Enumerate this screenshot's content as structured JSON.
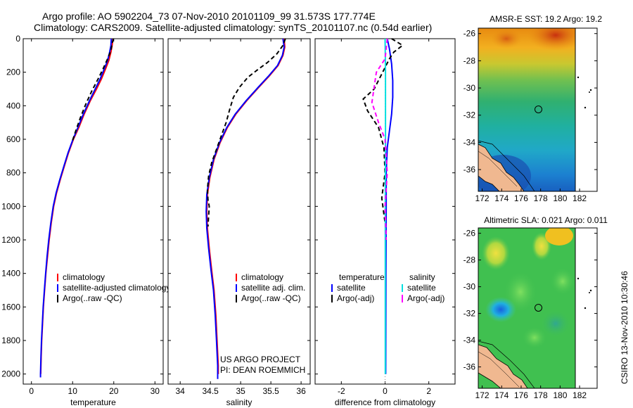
{
  "header": {
    "line1": "Argo profile: AO 5902204_73 07-Nov-2010 20101109_99 31.573S 177.774E",
    "line2": "Climatology: CARS2009. Satellite-adjusted climatology: synTS_20101107.nc (0.54d earlier)"
  },
  "chart_data": [
    {
      "id": "temperature",
      "type": "line",
      "xlabel": "temperature",
      "ylabel": "",
      "xlim": [
        -2,
        32
      ],
      "ylim": [
        2060,
        0
      ],
      "x_ticks": [
        0,
        10,
        20,
        30
      ],
      "y_ticks": [
        0,
        200,
        400,
        600,
        800,
        1000,
        1200,
        1400,
        1600,
        1800,
        2000
      ],
      "legend": [
        {
          "label": "climatology",
          "color": "#ff0000"
        },
        {
          "label": "satellite-adjusted climatology",
          "color": "#0000ff"
        },
        {
          "label": "Argo(..raw -QC)",
          "color": "#000000"
        }
      ],
      "series": [
        {
          "name": "climatology",
          "color": "#ff0000",
          "dash": "",
          "points": [
            [
              19.8,
              0
            ],
            [
              19.6,
              40
            ],
            [
              19.3,
              80
            ],
            [
              18.8,
              130
            ],
            [
              18.0,
              180
            ],
            [
              17.0,
              240
            ],
            [
              15.8,
              300
            ],
            [
              14.3,
              370
            ],
            [
              12.8,
              450
            ],
            [
              11.5,
              530
            ],
            [
              10.2,
              600
            ],
            [
              9.0,
              680
            ],
            [
              8.0,
              760
            ],
            [
              7.0,
              840
            ],
            [
              6.1,
              920
            ],
            [
              5.4,
              1000
            ],
            [
              4.8,
              1100
            ],
            [
              4.3,
              1200
            ],
            [
              3.9,
              1300
            ],
            [
              3.5,
              1400
            ],
            [
              3.2,
              1500
            ],
            [
              2.9,
              1600
            ],
            [
              2.7,
              1700
            ],
            [
              2.5,
              1800
            ],
            [
              2.35,
              1900
            ],
            [
              2.25,
              2000
            ]
          ]
        },
        {
          "name": "satellite-adjusted climatology",
          "color": "#0000ff",
          "dash": "",
          "points": [
            [
              19.4,
              0
            ],
            [
              19.3,
              40
            ],
            [
              19.0,
              80
            ],
            [
              18.5,
              130
            ],
            [
              17.7,
              180
            ],
            [
              16.7,
              240
            ],
            [
              15.5,
              300
            ],
            [
              14.1,
              370
            ],
            [
              12.6,
              450
            ],
            [
              11.3,
              530
            ],
            [
              10.1,
              600
            ],
            [
              8.9,
              680
            ],
            [
              7.9,
              760
            ],
            [
              6.9,
              840
            ],
            [
              6.0,
              920
            ],
            [
              5.3,
              1000
            ],
            [
              4.7,
              1100
            ],
            [
              4.2,
              1200
            ],
            [
              3.8,
              1300
            ],
            [
              3.45,
              1400
            ],
            [
              3.15,
              1500
            ],
            [
              2.85,
              1600
            ],
            [
              2.65,
              1700
            ],
            [
              2.45,
              1800
            ],
            [
              2.3,
              1900
            ],
            [
              2.2,
              2000
            ],
            [
              2.2,
              2020
            ]
          ]
        },
        {
          "name": "Argo(..raw -QC)",
          "color": "#000000",
          "dash": "6,4",
          "points": [
            [
              19.9,
              0
            ],
            [
              19.6,
              30
            ],
            [
              19.3,
              70
            ],
            [
              18.5,
              120
            ],
            [
              17.4,
              180
            ],
            [
              16.2,
              240
            ],
            [
              14.7,
              310
            ],
            [
              13.2,
              390
            ],
            [
              11.9,
              470
            ],
            [
              10.9,
              540
            ],
            [
              9.8,
              620
            ]
          ]
        }
      ]
    },
    {
      "id": "salinity",
      "type": "line",
      "xlabel": "salinity",
      "ylabel": "",
      "xlim": [
        33.8,
        36.15
      ],
      "ylim": [
        2060,
        0
      ],
      "x_ticks": [
        34,
        34.5,
        35,
        35.5,
        36
      ],
      "y_ticks": [
        0,
        200,
        400,
        600,
        800,
        1000,
        1200,
        1400,
        1600,
        1800,
        2000
      ],
      "legend": [
        {
          "label": "climatology",
          "color": "#ff0000"
        },
        {
          "label": "satellite adj. clim.",
          "color": "#0000ff"
        },
        {
          "label": "Argo(..raw -QC)",
          "color": "#000000"
        }
      ],
      "annotations": [
        "US ARGO PROJECT",
        "PI: DEAN ROEMMICH"
      ],
      "series": [
        {
          "name": "climatology",
          "color": "#ff0000",
          "dash": "",
          "points": [
            [
              35.72,
              0
            ],
            [
              35.73,
              50
            ],
            [
              35.7,
              100
            ],
            [
              35.62,
              160
            ],
            [
              35.48,
              220
            ],
            [
              35.3,
              290
            ],
            [
              35.1,
              370
            ],
            [
              34.92,
              450
            ],
            [
              34.78,
              530
            ],
            [
              34.66,
              620
            ],
            [
              34.56,
              720
            ],
            [
              34.49,
              830
            ],
            [
              34.45,
              930
            ],
            [
              34.44,
              1030
            ],
            [
              34.45,
              1130
            ],
            [
              34.48,
              1250
            ],
            [
              34.52,
              1380
            ],
            [
              34.56,
              1500
            ],
            [
              34.59,
              1650
            ],
            [
              34.61,
              1800
            ],
            [
              34.63,
              1950
            ],
            [
              34.63,
              2000
            ]
          ]
        },
        {
          "name": "satellite adj. clim.",
          "color": "#0000ff",
          "dash": "",
          "points": [
            [
              35.7,
              0
            ],
            [
              35.72,
              50
            ],
            [
              35.69,
              100
            ],
            [
              35.61,
              160
            ],
            [
              35.47,
              220
            ],
            [
              35.29,
              290
            ],
            [
              35.09,
              370
            ],
            [
              34.91,
              450
            ],
            [
              34.77,
              530
            ],
            [
              34.65,
              620
            ],
            [
              34.55,
              720
            ],
            [
              34.48,
              830
            ],
            [
              34.44,
              930
            ],
            [
              34.43,
              1030
            ],
            [
              34.44,
              1130
            ],
            [
              34.47,
              1250
            ],
            [
              34.51,
              1380
            ],
            [
              34.55,
              1500
            ],
            [
              34.58,
              1650
            ],
            [
              34.6,
              1800
            ],
            [
              34.62,
              1950
            ],
            [
              34.62,
              2030
            ]
          ]
        },
        {
          "name": "Argo(..raw -QC)",
          "color": "#000000",
          "dash": "6,4",
          "points": [
            [
              35.74,
              0
            ],
            [
              35.7,
              40
            ],
            [
              35.6,
              90
            ],
            [
              35.45,
              140
            ],
            [
              35.3,
              180
            ],
            [
              35.12,
              230
            ],
            [
              34.98,
              290
            ],
            [
              34.88,
              350
            ],
            [
              34.82,
              420
            ],
            [
              34.76,
              500
            ],
            [
              34.68,
              580
            ],
            [
              34.6,
              660
            ],
            [
              34.52,
              740
            ],
            [
              34.47,
              820
            ],
            [
              34.45,
              900
            ],
            [
              34.46,
              960
            ],
            [
              34.48,
              1000
            ],
            [
              34.47,
              1060
            ],
            [
              34.46,
              1120
            ]
          ]
        }
      ]
    },
    {
      "id": "difference",
      "type": "line",
      "xlabel": "difference from climatology",
      "ylabel": "",
      "xlim": [
        -3.2,
        3.2
      ],
      "ylim": [
        2060,
        0
      ],
      "x_ticks": [
        -2,
        0,
        2
      ],
      "y_ticks": [
        0,
        200,
        400,
        600,
        800,
        1000,
        1200,
        1400,
        1600,
        1800,
        2000
      ],
      "legend_columns": [
        {
          "title": "temperature",
          "entries": [
            {
              "label": "satellite",
              "color": "#0000ff"
            },
            {
              "label": "Argo(-adj)",
              "color": "#000000"
            }
          ]
        },
        {
          "title": "salinity",
          "entries": [
            {
              "label": "satellite",
              "color": "#00e0e0"
            },
            {
              "label": "Argo(-adj)",
              "color": "#ff00ff"
            }
          ]
        }
      ],
      "series": [
        {
          "name": "temperature satellite",
          "color": "#0000ff",
          "dash": "",
          "points": [
            [
              0.1,
              0
            ],
            [
              0.2,
              60
            ],
            [
              0.3,
              150
            ],
            [
              0.35,
              250
            ],
            [
              0.35,
              350
            ],
            [
              0.3,
              450
            ],
            [
              0.2,
              550
            ],
            [
              0.1,
              650
            ],
            [
              0.05,
              800
            ],
            [
              0.05,
              1000
            ],
            [
              0.04,
              1400
            ],
            [
              0.03,
              2000
            ]
          ]
        },
        {
          "name": "temperature Argo(-adj)",
          "color": "#000000",
          "dash": "6,4",
          "points": [
            [
              0.3,
              0
            ],
            [
              0.8,
              40
            ],
            [
              0.4,
              80
            ],
            [
              0.2,
              120
            ],
            [
              -0.5,
              300
            ],
            [
              -1.0,
              360
            ],
            [
              -0.8,
              430
            ],
            [
              -0.3,
              530
            ],
            [
              -0.05,
              650
            ],
            [
              0.0,
              800
            ],
            [
              -0.15,
              950
            ],
            [
              0.0,
              1100
            ]
          ]
        },
        {
          "name": "salinity satellite",
          "color": "#00e0e0",
          "dash": "",
          "points": [
            [
              0.0,
              0
            ],
            [
              0.02,
              200
            ],
            [
              0.02,
              600
            ],
            [
              0.01,
              1000
            ],
            [
              0.01,
              2000
            ]
          ]
        },
        {
          "name": "salinity Argo(-adj)",
          "color": "#ff00ff",
          "dash": "6,4",
          "points": [
            [
              0.1,
              0
            ],
            [
              0.0,
              120
            ],
            [
              -0.4,
              200
            ],
            [
              -0.6,
              380
            ],
            [
              -0.3,
              500
            ],
            [
              0.0,
              600
            ],
            [
              0.1,
              800
            ],
            [
              0.0,
              1000
            ],
            [
              0.05,
              1200
            ]
          ]
        }
      ]
    },
    {
      "id": "sst-map",
      "type": "heatmap",
      "title": "AMSR-E SST: 19.2  Argo: 19.2",
      "xlim": [
        171.6,
        183.8
      ],
      "ylim": [
        -37.6,
        -25.6
      ],
      "x_ticks": [
        172,
        174,
        176,
        178,
        180,
        182
      ],
      "y_ticks": [
        -26,
        -28,
        -30,
        -32,
        -34,
        -36
      ],
      "float_position": [
        177.774,
        -31.573
      ]
    },
    {
      "id": "sla-map",
      "type": "heatmap",
      "title": "Altimetric SLA: 0.021  Argo: 0.011",
      "xlim": [
        171.6,
        183.8
      ],
      "ylim": [
        -37.6,
        -25.6
      ],
      "x_ticks": [
        172,
        174,
        176,
        178,
        180,
        182
      ],
      "y_ticks": [
        -26,
        -28,
        -30,
        -32,
        -34,
        -36
      ],
      "float_position": [
        177.774,
        -31.573
      ]
    }
  ],
  "footer": {
    "stamp": "CSIRO 13-Nov-2010 10:30:46"
  }
}
